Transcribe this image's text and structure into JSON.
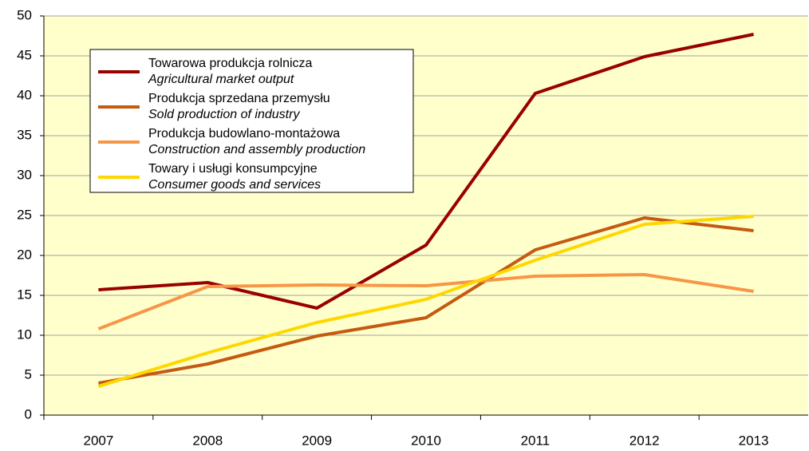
{
  "chart_data": {
    "type": "line",
    "categories": [
      "2007",
      "2008",
      "2009",
      "2010",
      "2011",
      "2012",
      "2013"
    ],
    "series": [
      {
        "name": "Towarowa produkcja rolnicza",
        "name_en": "Agricultural market output",
        "color": "#990000",
        "values": [
          15.7,
          16.6,
          13.4,
          21.3,
          40.3,
          44.9,
          47.7
        ]
      },
      {
        "name": "Produkcja sprzedana przemysłu",
        "name_en": "Sold production of industry",
        "color": "#C55A11",
        "values": [
          4.0,
          6.4,
          9.9,
          12.2,
          20.7,
          24.7,
          23.1
        ]
      },
      {
        "name": "Produkcja budowlano-montażowa",
        "name_en": "Construction and assembly production",
        "color": "#F79646",
        "values": [
          10.8,
          16.1,
          16.3,
          16.2,
          17.4,
          17.6,
          15.5
        ]
      },
      {
        "name": "Towary i usługi konsumpcyjne",
        "name_en": "Consumer goods and services",
        "color": "#FFD700",
        "values": [
          3.6,
          7.8,
          11.6,
          14.5,
          19.4,
          23.9,
          24.9
        ]
      }
    ],
    "ylim": [
      0,
      50
    ],
    "yticks": [
      0,
      5,
      10,
      15,
      20,
      25,
      30,
      35,
      40,
      45,
      50
    ],
    "grid": true,
    "legend": "upper left"
  }
}
